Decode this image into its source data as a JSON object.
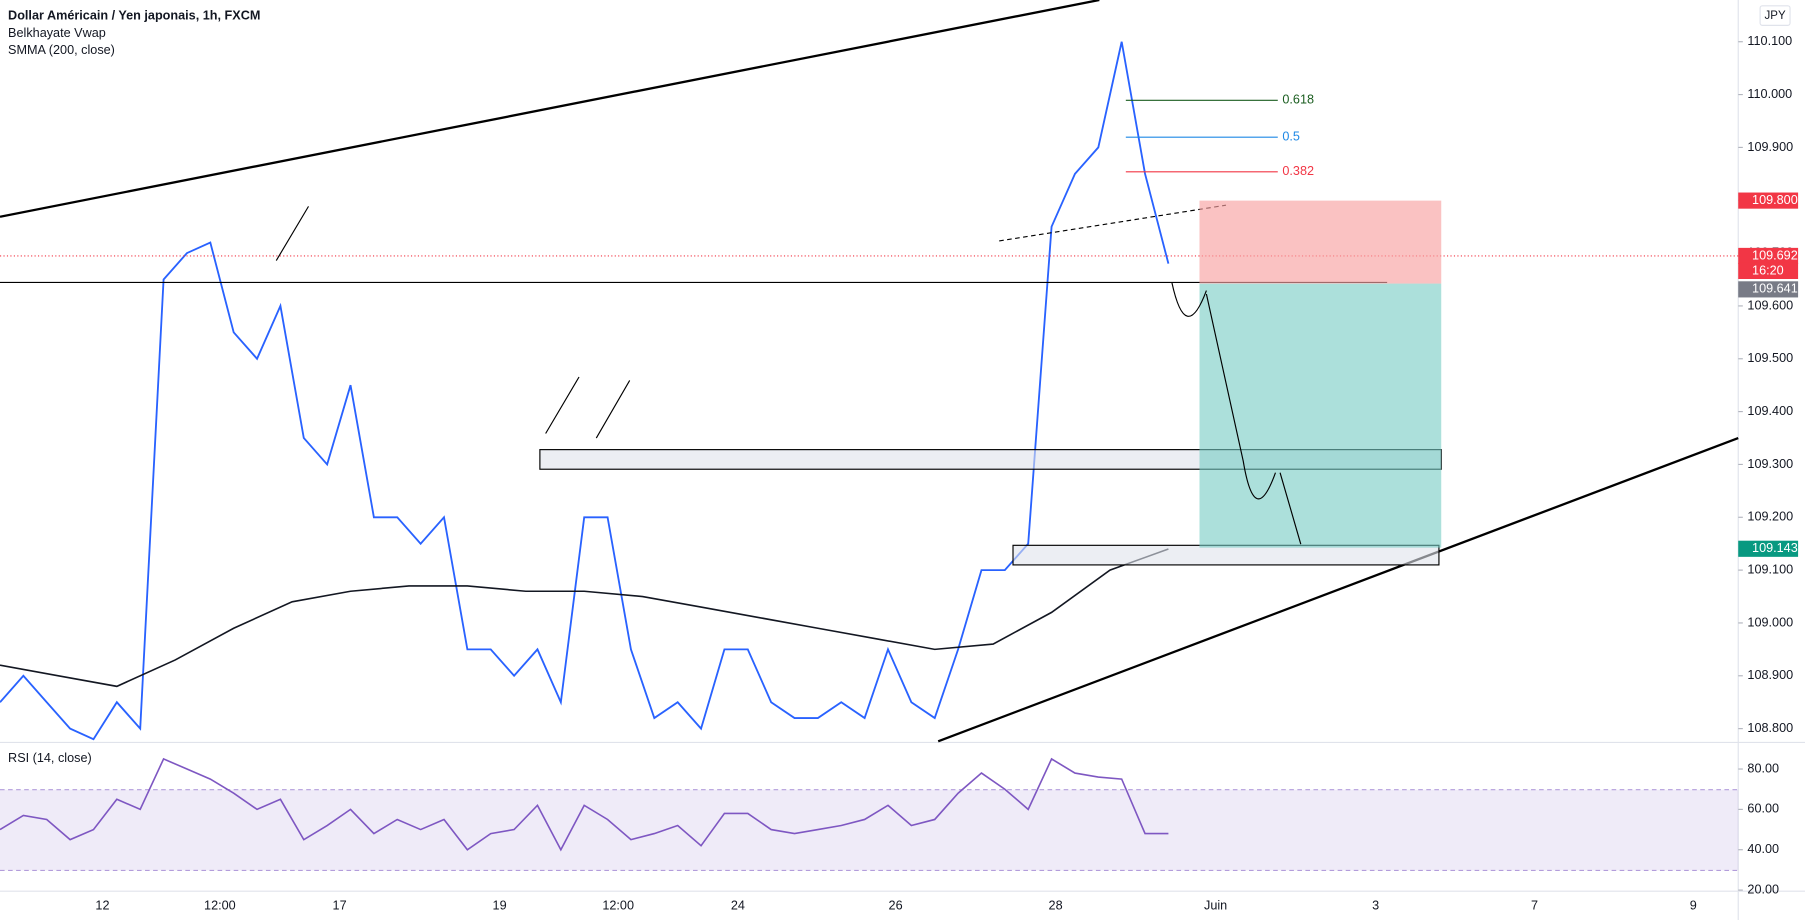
{
  "header": {
    "title": "Dollar Américain / Yen japonais, 1h, FXCM",
    "indicators": [
      "Belkhayate Vwap",
      "SMMA (200, close)"
    ],
    "currency": "JPY"
  },
  "fib_levels": [
    "0.618",
    "0.5",
    "0.382"
  ],
  "price_tags": [
    "109.800",
    "109.692",
    "16:20",
    "109.641",
    "109.143"
  ],
  "time_labels": [
    "12",
    "12:00",
    "17",
    "19",
    "12:00",
    "24",
    "26",
    "28",
    "Juin",
    "3",
    "7",
    "9"
  ],
  "chart_data": [
    {
      "type": "line",
      "ylim": [
        108.776,
        110.179
      ],
      "yticks": [
        {
          "value": 108.8,
          "label": "108.800"
        },
        {
          "value": 108.9,
          "label": "108.900"
        },
        {
          "value": 109.0,
          "label": "109.000"
        },
        {
          "value": 109.1,
          "label": "109.100"
        },
        {
          "value": 109.2,
          "label": "109.200"
        },
        {
          "value": 109.3,
          "label": "109.300"
        },
        {
          "value": 109.4,
          "label": "109.400"
        },
        {
          "value": 109.5,
          "label": "109.500"
        },
        {
          "value": 109.6,
          "label": "109.600"
        },
        {
          "value": 109.7,
          "label": "109.700"
        },
        {
          "value": 109.8,
          "label": "109.800"
        },
        {
          "value": 109.9,
          "label": "109.900"
        },
        {
          "value": 110.0,
          "label": "110.000"
        },
        {
          "value": 110.1,
          "label": "110.100"
        }
      ],
      "series": [
        {
          "color": "#2962ff",
          "values": [
            108.85,
            108.9,
            108.85,
            108.8,
            108.78,
            108.85,
            108.8,
            109.65,
            109.7,
            109.72,
            109.55,
            109.5,
            109.6,
            109.35,
            109.3,
            109.45,
            109.2,
            109.2,
            109.15,
            109.2,
            108.95,
            108.95,
            108.9,
            108.95,
            108.85,
            109.2,
            109.2,
            108.95,
            108.82,
            108.85,
            108.8,
            108.95,
            108.95,
            108.85,
            108.82,
            108.82,
            108.85,
            108.82,
            108.95,
            108.85,
            108.82,
            108.95,
            109.1,
            109.1,
            109.15,
            109.75,
            109.85,
            109.9,
            110.1,
            109.85,
            109.68
          ]
        },
        {
          "color": "#131722",
          "values": [
            108.92,
            108.9,
            108.88,
            108.93,
            108.99,
            109.04,
            109.06,
            109.07,
            109.07,
            109.06,
            109.06,
            109.05,
            109.03,
            109.01,
            108.99,
            108.97,
            108.95,
            108.96,
            109.02,
            109.1,
            109.14
          ]
        }
      ]
    },
    {
      "type": "line",
      "title": "RSI (14, close)",
      "ylim": [
        12.6,
        92.6
      ],
      "yticks": [
        {
          "value": 20,
          "label": "20.00"
        },
        {
          "value": 40,
          "label": "40.00"
        },
        {
          "value": 60,
          "label": "60.00"
        },
        {
          "value": 80,
          "label": "80.00"
        }
      ],
      "series": [
        {
          "color": "#7e57c2",
          "values": [
            50,
            57,
            55,
            45,
            50,
            65,
            60,
            85,
            80,
            75,
            68,
            60,
            65,
            45,
            52,
            60,
            48,
            55,
            50,
            55,
            40,
            48,
            50,
            62,
            40,
            62,
            55,
            45,
            48,
            52,
            42,
            58,
            58,
            50,
            48,
            50,
            52,
            55,
            62,
            52,
            55,
            68,
            78,
            70,
            60,
            85,
            78,
            76,
            75,
            48,
            48
          ]
        }
      ]
    }
  ]
}
